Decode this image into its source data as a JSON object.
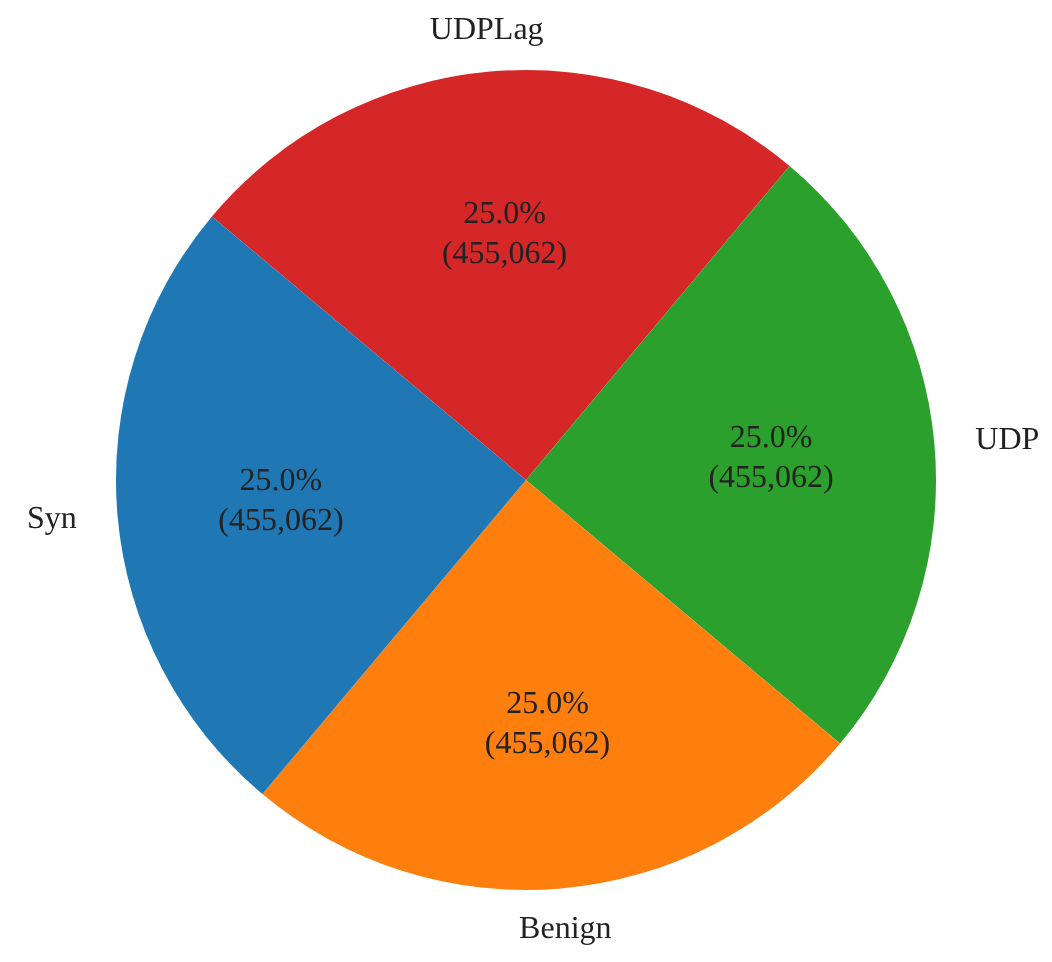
{
  "chart_data": {
    "type": "pie",
    "categories": [
      "UDPLag",
      "UDP",
      "Benign",
      "Syn"
    ],
    "values": [
      455062,
      455062,
      455062,
      455062
    ],
    "colors": [
      "#d62728",
      "#2ca02c",
      "#ff7f0e",
      "#1f77b4"
    ],
    "value_labels": [
      "25.0%\n(455,062)",
      "25.0%\n(455,062)",
      "25.0%\n(455,062)",
      "25.0%\n(455,062)"
    ],
    "legend": false
  }
}
